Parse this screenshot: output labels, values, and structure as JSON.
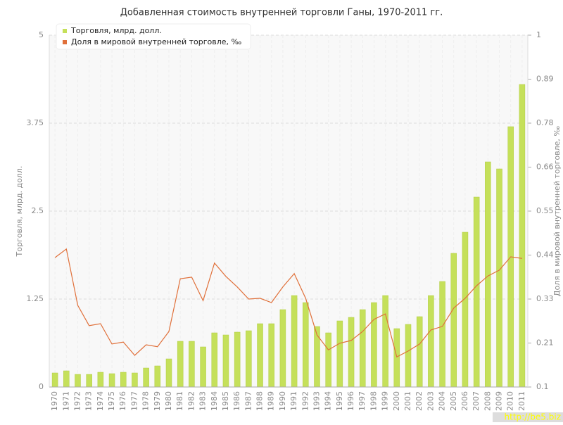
{
  "chart_data": {
    "type": "bar-line",
    "title": "Добавленная стоимость внутренней торговли Ганы, 1970-2011 гг.",
    "y_label": "Торговля, млрд. долл.",
    "y2_label": "Доля в мировой внутренней торговле, ‰",
    "watermark": "http://be5.biz",
    "categories": [
      "1970",
      "1971",
      "1972",
      "1973",
      "1974",
      "1975",
      "1976",
      "1977",
      "1978",
      "1979",
      "1980",
      "1981",
      "1982",
      "1983",
      "1984",
      "1985",
      "1986",
      "1987",
      "1988",
      "1989",
      "1990",
      "1991",
      "1992",
      "1993",
      "1994",
      "1995",
      "1996",
      "1997",
      "1998",
      "1999",
      "2000",
      "2001",
      "2002",
      "2003",
      "2004",
      "2005",
      "2006",
      "2007",
      "2008",
      "2009",
      "2010",
      "2011"
    ],
    "series": [
      {
        "name": "Торговля, млрд. долл.",
        "type": "bar",
        "color": "#c5e05a",
        "values": [
          0.2,
          0.23,
          0.18,
          0.18,
          0.21,
          0.19,
          0.21,
          0.2,
          0.27,
          0.3,
          0.4,
          0.65,
          0.65,
          0.57,
          0.77,
          0.74,
          0.78,
          0.8,
          0.9,
          0.9,
          1.1,
          1.3,
          1.2,
          0.86,
          0.77,
          0.94,
          0.99,
          1.1,
          1.2,
          1.3,
          0.83,
          0.89,
          1.0,
          1.3,
          1.5,
          1.9,
          2.2,
          2.7,
          3.2,
          3.1,
          3.7,
          4.3
        ]
      },
      {
        "name": "Доля в мировой внутренней торговле, ‰",
        "type": "line",
        "axis": "y2",
        "color": "#e0703a",
        "values": [
          0.431,
          0.453,
          0.309,
          0.257,
          0.262,
          0.21,
          0.215,
          0.181,
          0.208,
          0.203,
          0.242,
          0.377,
          0.381,
          0.321,
          0.417,
          0.383,
          0.356,
          0.325,
          0.327,
          0.316,
          0.356,
          0.39,
          0.327,
          0.233,
          0.195,
          0.212,
          0.219,
          0.242,
          0.273,
          0.287,
          0.177,
          0.192,
          0.21,
          0.246,
          0.255,
          0.302,
          0.327,
          0.359,
          0.384,
          0.399,
          0.433,
          0.429
        ]
      }
    ],
    "ylim": [
      0,
      5
    ],
    "yticks": [
      0,
      1.25,
      2.5,
      3.75,
      5
    ],
    "y2lim": [
      0.1,
      1
    ],
    "y2ticks": [
      0.1,
      {
        "value": 0.2125,
        "label": "0.21"
      },
      {
        "value": 0.325,
        "label": "0.33"
      },
      {
        "value": 0.4375,
        "label": "0.44"
      },
      0.55,
      {
        "value": 0.6625,
        "label": "0.66"
      },
      {
        "value": 0.775,
        "label": "0.78"
      },
      {
        "value": 0.8875,
        "label": "0.89"
      },
      1
    ],
    "grid": true,
    "legend": "top-left"
  }
}
